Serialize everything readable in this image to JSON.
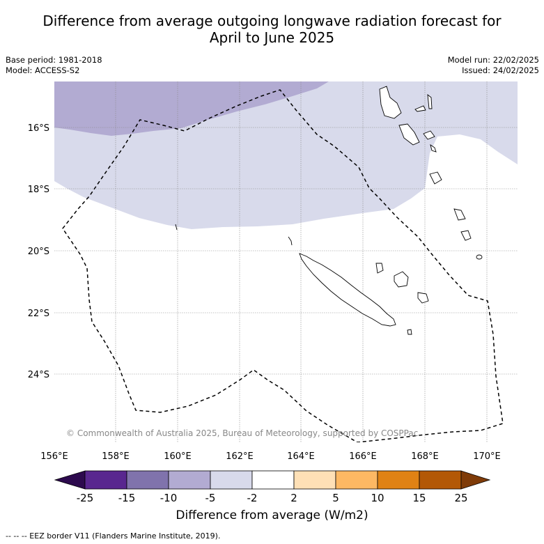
{
  "title_line1": "Difference from average outgoing longwave radiation forecast for",
  "title_line2": "April to June 2025",
  "base_period": "Base period: 1981-2018",
  "model": "Model: ACCESS-S2",
  "model_run": "Model run: 22/02/2025",
  "issued": "Issued: 24/02/2025",
  "x_ticks": [
    "156°E",
    "158°E",
    "160°E",
    "162°E",
    "164°E",
    "166°E",
    "168°E",
    "170°E"
  ],
  "y_ticks": [
    "16°S",
    "18°S",
    "20°S",
    "22°S",
    "24°S"
  ],
  "copyright": "© Commonwealth of Australia 2025, Bureau of Meteorology, supported by COSPPac",
  "colorbar": {
    "label": "Difference from average (W/m2)",
    "ticks": [
      "-25",
      "-15",
      "-10",
      "-5",
      "-2",
      "2",
      "5",
      "10",
      "15",
      "25"
    ],
    "colors": [
      "#2d0a4e",
      "#59278f",
      "#8073ac",
      "#b2abd2",
      "#d8daeb",
      "#ffffff",
      "#fee0b6",
      "#fdb863",
      "#e08214",
      "#b35806",
      "#7f3b08"
    ]
  },
  "footer": "-- -- -- EEZ border V11 (Flanders Marine Institute, 2019)."
}
